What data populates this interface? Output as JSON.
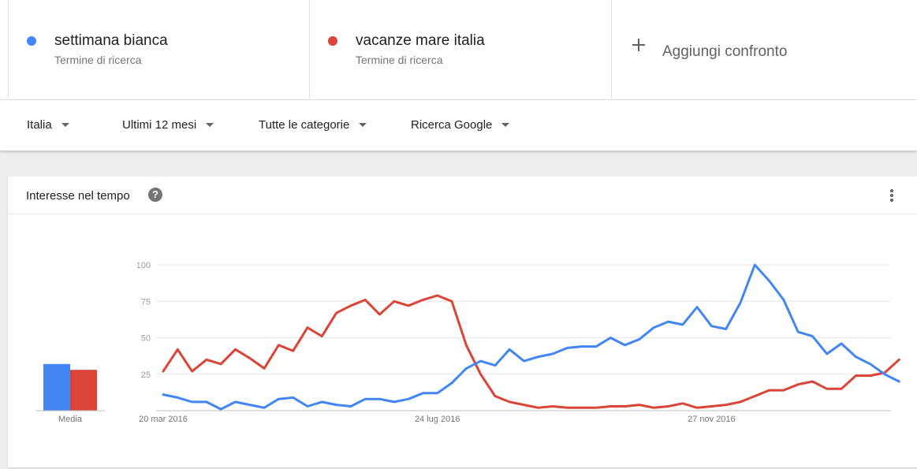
{
  "terms": [
    {
      "name": "settimana bianca",
      "type": "Termine di ricerca",
      "color": "#4285f4"
    },
    {
      "name": "vacanze mare italia",
      "type": "Termine di ricerca",
      "color": "#db4437"
    }
  ],
  "add_compare_label": "Aggiungi confronto",
  "filters": {
    "region": "Italia",
    "period": "Ultimi 12 mesi",
    "category": "Tutte le categorie",
    "source": "Ricerca Google"
  },
  "card": {
    "title": "Interesse nel tempo",
    "help_icon": "help-icon",
    "more_icon": "more-vert-icon"
  },
  "chart_data": {
    "type": "line",
    "y_ticks": [
      25,
      50,
      75,
      100
    ],
    "ylim": [
      0,
      100
    ],
    "x_tick_labels": [
      "20 mar 2016",
      "24 lug 2016",
      "27 nov 2016"
    ],
    "x_tick_index": [
      0,
      19,
      38
    ],
    "series": [
      {
        "name": "settimana bianca",
        "color": "#4285f4",
        "values": [
          11,
          9,
          6,
          6,
          1,
          6,
          4,
          2,
          8,
          9,
          3,
          6,
          4,
          3,
          8,
          8,
          6,
          8,
          12,
          12,
          19,
          29,
          34,
          31,
          42,
          34,
          37,
          39,
          43,
          44,
          44,
          50,
          45,
          49,
          57,
          61,
          59,
          71,
          58,
          56,
          74,
          100,
          89,
          76,
          54,
          51,
          39,
          46,
          37,
          32,
          25,
          20
        ]
      },
      {
        "name": "vacanze mare italia",
        "color": "#db4437",
        "values": [
          27,
          42,
          27,
          35,
          32,
          42,
          36,
          29,
          45,
          41,
          57,
          51,
          67,
          72,
          76,
          66,
          75,
          72,
          76,
          79,
          75,
          45,
          25,
          10,
          6,
          4,
          2,
          3,
          2,
          2,
          2,
          3,
          3,
          4,
          2,
          3,
          5,
          2,
          3,
          4,
          6,
          10,
          14,
          14,
          18,
          20,
          15,
          15,
          24,
          24,
          26,
          35
        ]
      }
    ],
    "averages": {
      "label": "Media",
      "values": [
        32,
        28
      ]
    }
  }
}
